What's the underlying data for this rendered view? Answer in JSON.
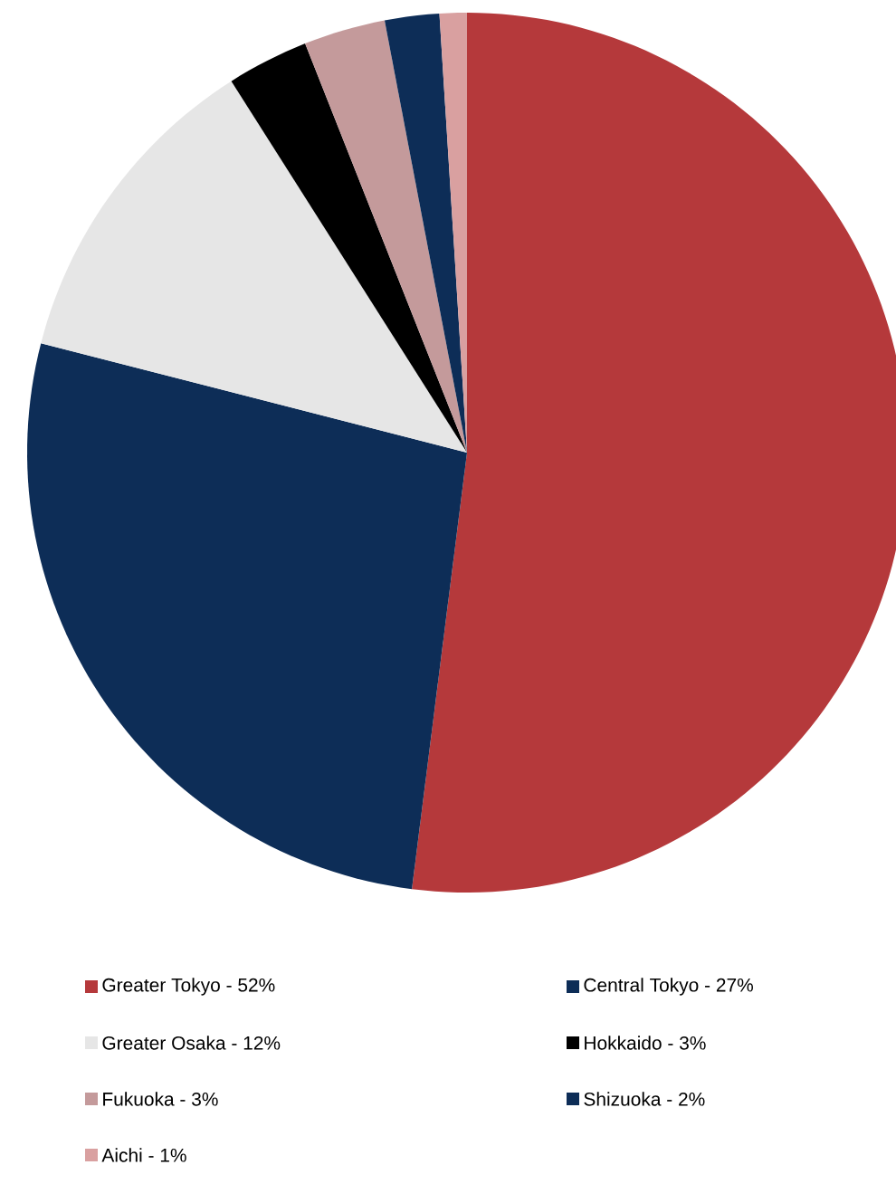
{
  "chart_data": {
    "type": "pie",
    "legend": "bottom",
    "categories": [
      "Greater Tokyo - 52%",
      "Central Tokyo - 27%",
      "Greater Osaka - 12%",
      "Hokkaido - 3%",
      "Fukuoka - 3%",
      "Shizuoka - 2%",
      "Aichi - 1%"
    ],
    "values": [
      52,
      27,
      12,
      3,
      3,
      2,
      1
    ],
    "colors": [
      "#b5393b",
      "#0d2d57",
      "#e6e6e6",
      "#000000",
      "#c49a9b",
      "#0d2d57",
      "#d9a0a0"
    ]
  }
}
